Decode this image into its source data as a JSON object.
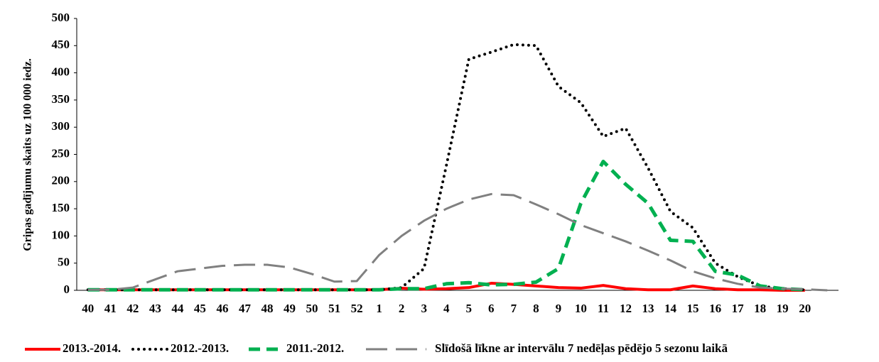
{
  "chart_data": {
    "type": "line",
    "y_label": "Gripas gadījumu skaits uz 100 000 iedz.",
    "categories": [
      40,
      41,
      42,
      43,
      44,
      45,
      46,
      47,
      48,
      49,
      50,
      51,
      52,
      1,
      2,
      3,
      4,
      5,
      6,
      7,
      8,
      9,
      10,
      11,
      12,
      13,
      14,
      15,
      16,
      17,
      18,
      19,
      20,
      null
    ],
    "series": [
      {
        "name": "2013.-2014.",
        "color": "#ff0000",
        "style": "solid",
        "values": [
          1,
          1,
          1,
          1,
          1,
          1,
          1,
          1,
          1,
          1,
          1,
          1,
          1,
          1,
          4,
          2,
          3,
          5,
          13,
          11,
          8,
          5,
          4,
          9,
          3,
          1,
          1,
          8,
          3,
          1,
          1,
          0,
          0,
          null
        ]
      },
      {
        "name": "2012.-2013.",
        "color": "#000000",
        "style": "dotted",
        "values": [
          1,
          1,
          1,
          1,
          1,
          1,
          1,
          1,
          1,
          1,
          1,
          1,
          1,
          1,
          5,
          40,
          230,
          425,
          438,
          452,
          450,
          375,
          345,
          283,
          298,
          225,
          145,
          115,
          50,
          25,
          8,
          3,
          1,
          null
        ]
      },
      {
        "name": "2011.-2012.",
        "color": "#00b050",
        "style": "dashed",
        "values": [
          1,
          1,
          1,
          1,
          1,
          1,
          1,
          1,
          1,
          1,
          1,
          1,
          1,
          1,
          3,
          3,
          12,
          14,
          10,
          11,
          15,
          40,
          160,
          237,
          195,
          160,
          92,
          90,
          35,
          28,
          8,
          3,
          1,
          null
        ]
      },
      {
        "name": "Slīdošā līkne ar intervālu 7 nedēļas pēdējo 5 sezonu laikā",
        "color": "#808080",
        "style": "longdash",
        "values": [
          1,
          1,
          5,
          20,
          35,
          40,
          45,
          47,
          47,
          42,
          30,
          16,
          17,
          65,
          100,
          128,
          150,
          167,
          177,
          175,
          158,
          140,
          120,
          105,
          90,
          73,
          55,
          35,
          22,
          12,
          5,
          3,
          2,
          0
        ]
      }
    ],
    "ylim": [
      0,
      500
    ],
    "yticks": [
      0,
      50,
      100,
      150,
      200,
      250,
      300,
      350,
      400,
      450,
      500
    ],
    "legend": "bottom"
  }
}
